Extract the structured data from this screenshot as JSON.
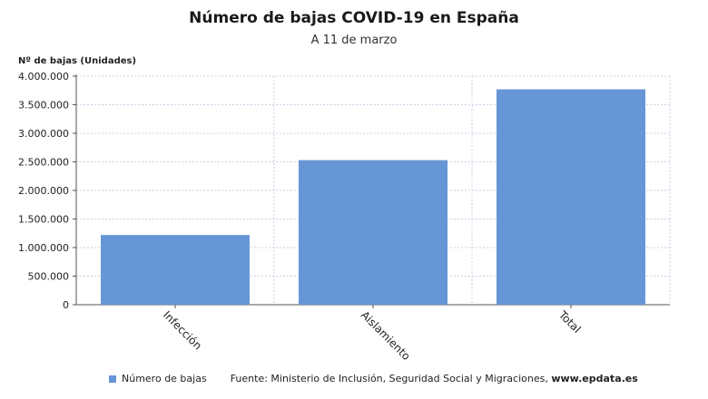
{
  "chart_data": {
    "type": "bar",
    "title": "Número de bajas COVID-19 en España",
    "subtitle": "A 11 de marzo",
    "ylabel": "Nº de bajas (Unidades)",
    "xlabel": "",
    "categories": [
      "Infección",
      "Aislamiento",
      "Total"
    ],
    "series": [
      {
        "name": "Número de bajas",
        "values": [
          1220000,
          2530000,
          3770000
        ],
        "color": "#6796d6"
      }
    ],
    "ylim": [
      0,
      4000000
    ],
    "yticks": [
      0,
      500000,
      1000000,
      1500000,
      2000000,
      2500000,
      3000000,
      3500000,
      4000000
    ],
    "ytick_labels": [
      "0",
      "500.000",
      "1.000.000",
      "1.500.000",
      "2.000.000",
      "2.500.000",
      "3.000.000",
      "3.500.000",
      "4.000.000"
    ],
    "grid": true,
    "legend_position": "bottom-left"
  },
  "footer": {
    "source_text": "Fuente: Ministerio de Inclusión, Seguridad Social y Migraciones,",
    "site": "www.epdata.es"
  }
}
